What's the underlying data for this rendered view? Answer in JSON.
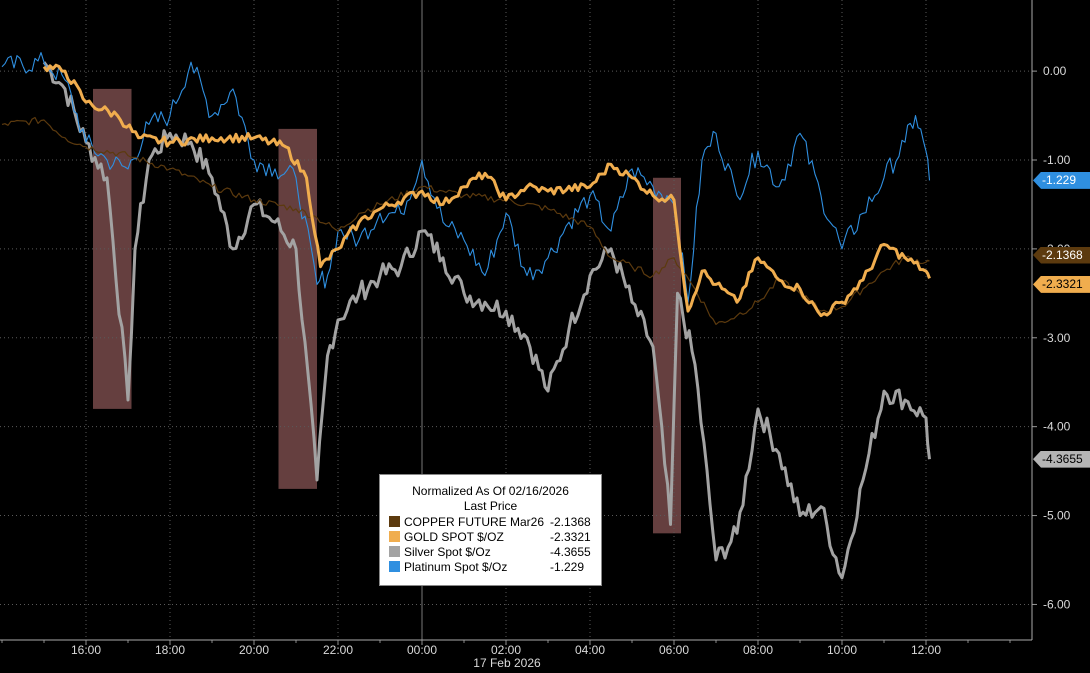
{
  "chart_data": {
    "type": "line",
    "title": "Normalized As Of 02/16/2026",
    "subtitle": "Last Price",
    "date_label": "17 Feb 2026",
    "x_tick_labels": [
      "16:00",
      "18:00",
      "20:00",
      "22:00",
      "00:00",
      "02:00",
      "04:00",
      "06:00",
      "08:00",
      "10:00",
      "12:00"
    ],
    "y_tick_labels": [
      "0.00",
      "-1.00",
      "-2.00",
      "-3.00",
      "-4.00",
      "-5.00",
      "-6.00"
    ],
    "ylim": [
      -6.4,
      0.8
    ],
    "grid": true,
    "legend_position": "bottom-center",
    "highlights": [
      {
        "from": "16:10",
        "to": "17:05",
        "low": -3.8,
        "high": -0.2
      },
      {
        "from": "20:35",
        "to": "21:30",
        "low": -4.7,
        "high": -0.65
      },
      {
        "from": "05:30",
        "to": "06:10",
        "low": -5.2,
        "high": -1.2
      }
    ],
    "series": [
      {
        "name": "COPPER FUTURE Mar26",
        "last": "-2.1368",
        "color": "#5c3a0e",
        "x": [
          "14:00",
          "15:00",
          "15:30",
          "16:00",
          "17:00",
          "18:00",
          "19:00",
          "20:00",
          "21:00",
          "21:30",
          "22:00",
          "22:30",
          "23:00",
          "00:00",
          "00:30",
          "01:00",
          "02:00",
          "03:00",
          "04:00",
          "04:30",
          "05:00",
          "05:30",
          "06:00",
          "06:30",
          "07:00",
          "07:30",
          "08:00",
          "08:30",
          "09:00",
          "09:30",
          "10:00",
          "10:30",
          "11:00",
          "11:30",
          "12:00",
          "12:05"
        ],
        "values": [
          -0.6,
          -0.55,
          -0.75,
          -0.85,
          -0.95,
          -1.1,
          -1.3,
          -1.45,
          -1.55,
          -1.65,
          -1.8,
          -1.6,
          -1.5,
          -1.3,
          -1.35,
          -1.4,
          -1.45,
          -1.55,
          -1.75,
          -2.1,
          -2.2,
          -2.3,
          -2.1,
          -2.45,
          -2.85,
          -2.75,
          -2.6,
          -2.35,
          -2.5,
          -2.7,
          -2.65,
          -2.45,
          -2.25,
          -2.1,
          -2.15,
          -2.1368
        ]
      },
      {
        "name": "GOLD SPOT $/OZ",
        "last": "-2.3321",
        "color": "#f0ad4e",
        "x": [
          "15:00",
          "15:30",
          "16:00",
          "16:45",
          "17:15",
          "18:00",
          "19:00",
          "20:00",
          "20:45",
          "21:15",
          "21:35",
          "22:00",
          "22:30",
          "23:00",
          "00:00",
          "00:30",
          "01:00",
          "01:30",
          "02:00",
          "02:30",
          "03:00",
          "04:00",
          "04:30",
          "05:00",
          "05:30",
          "06:00",
          "06:20",
          "06:40",
          "07:00",
          "07:30",
          "08:00",
          "08:30",
          "09:00",
          "09:30",
          "10:00",
          "10:30",
          "11:00",
          "11:30",
          "12:00",
          "12:05"
        ],
        "values": [
          0.05,
          0.0,
          -0.35,
          -0.5,
          -0.75,
          -0.8,
          -0.75,
          -0.75,
          -0.85,
          -1.2,
          -2.2,
          -2.0,
          -1.7,
          -1.55,
          -1.35,
          -1.5,
          -1.3,
          -1.15,
          -1.45,
          -1.3,
          -1.35,
          -1.3,
          -1.05,
          -1.2,
          -1.4,
          -1.45,
          -2.7,
          -2.25,
          -2.4,
          -2.6,
          -2.1,
          -2.35,
          -2.45,
          -2.75,
          -2.6,
          -2.35,
          -1.95,
          -2.1,
          -2.25,
          -2.3321
        ]
      },
      {
        "name": "Silver Spot $/Oz",
        "last": "-4.3655",
        "color": "#a3a3a3",
        "x": [
          "15:00",
          "15:30",
          "16:00",
          "16:30",
          "17:00",
          "17:10",
          "17:30",
          "18:00",
          "18:30",
          "19:00",
          "19:30",
          "20:00",
          "20:30",
          "21:00",
          "21:30",
          "21:45",
          "22:00",
          "22:30",
          "23:00",
          "23:30",
          "00:00",
          "00:30",
          "01:00",
          "01:30",
          "02:00",
          "02:30",
          "03:00",
          "03:30",
          "04:00",
          "04:30",
          "05:00",
          "05:30",
          "05:55",
          "06:05",
          "06:30",
          "07:00",
          "07:30",
          "08:00",
          "08:30",
          "09:00",
          "09:30",
          "10:00",
          "10:30",
          "11:00",
          "11:30",
          "12:00",
          "12:05"
        ],
        "values": [
          0.1,
          -0.2,
          -0.8,
          -1.2,
          -3.7,
          -2.0,
          -1.0,
          -0.7,
          -0.8,
          -1.2,
          -2.0,
          -1.5,
          -1.7,
          -2.0,
          -4.6,
          -3.2,
          -2.8,
          -2.5,
          -2.3,
          -2.2,
          -1.8,
          -2.1,
          -2.5,
          -2.6,
          -2.7,
          -3.0,
          -3.6,
          -2.9,
          -2.3,
          -2.0,
          -2.6,
          -3.1,
          -5.1,
          -2.5,
          -3.3,
          -5.5,
          -5.2,
          -3.8,
          -4.3,
          -5.0,
          -4.9,
          -5.7,
          -4.6,
          -3.6,
          -3.7,
          -3.9,
          -4.3655
        ]
      },
      {
        "name": "Platinum Spot $/Oz",
        "last": "-1.229",
        "color": "#2f8fe0",
        "x": [
          "14:00",
          "15:00",
          "15:30",
          "16:00",
          "16:30",
          "17:00",
          "17:30",
          "18:00",
          "18:30",
          "19:00",
          "19:30",
          "20:00",
          "20:30",
          "21:00",
          "21:30",
          "21:45",
          "22:00",
          "22:30",
          "23:00",
          "23:30",
          "00:00",
          "00:30",
          "01:00",
          "01:30",
          "02:00",
          "02:30",
          "03:00",
          "03:30",
          "04:00",
          "04:30",
          "05:00",
          "05:30",
          "05:50",
          "06:00",
          "06:20",
          "06:40",
          "07:00",
          "07:30",
          "08:00",
          "08:30",
          "09:00",
          "09:30",
          "10:00",
          "10:30",
          "11:00",
          "11:30",
          "11:45",
          "12:00",
          "12:05"
        ],
        "values": [
          0.05,
          0.1,
          -0.1,
          -0.8,
          -1.0,
          -1.1,
          -0.6,
          -0.5,
          0.1,
          -0.5,
          -0.2,
          -1.0,
          -1.1,
          -1.2,
          -2.4,
          -2.3,
          -1.8,
          -1.9,
          -1.6,
          -1.6,
          -1.0,
          -1.7,
          -1.9,
          -2.3,
          -1.6,
          -2.3,
          -2.1,
          -1.7,
          -1.4,
          -1.8,
          -1.1,
          -1.3,
          -1.4,
          -1.5,
          -2.6,
          -1.0,
          -0.7,
          -1.4,
          -0.9,
          -1.3,
          -0.7,
          -1.4,
          -2.0,
          -1.6,
          -1.2,
          -0.8,
          -0.5,
          -0.9,
          -1.229
        ]
      }
    ]
  }
}
